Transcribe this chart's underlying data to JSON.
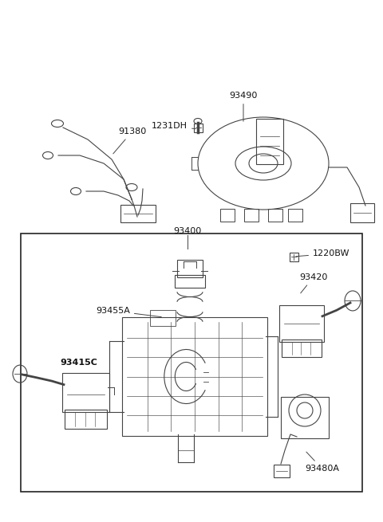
{
  "bg_color": "#ffffff",
  "border_color": "#222222",
  "line_color": "#444444",
  "text_color": "#111111",
  "fig_width": 4.8,
  "fig_height": 6.55,
  "dpi": 100,
  "xlim": [
    0,
    480
  ],
  "ylim": [
    0,
    655
  ]
}
